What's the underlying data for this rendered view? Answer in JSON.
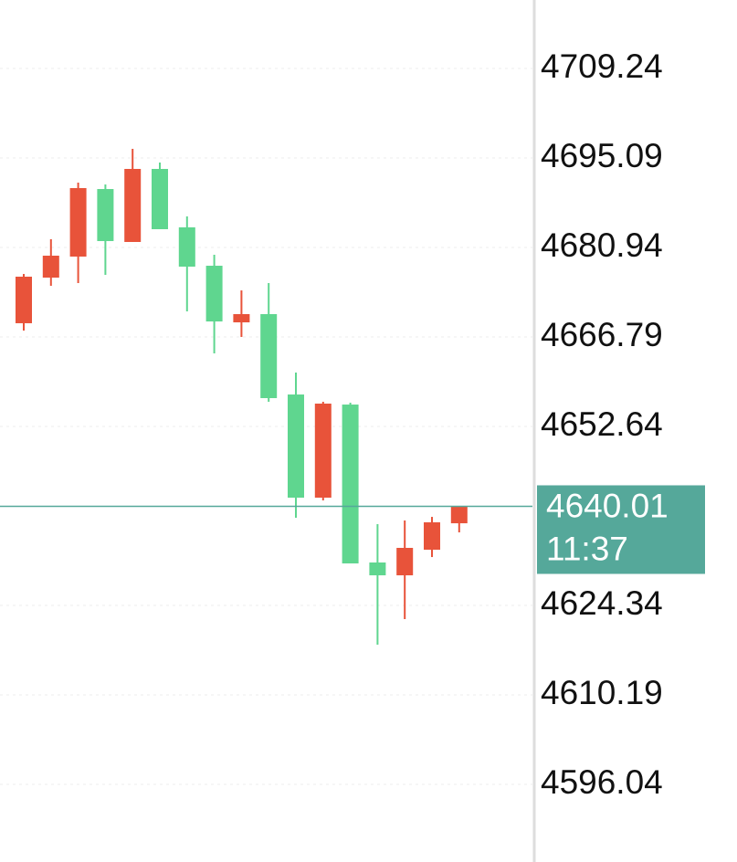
{
  "chart_data": {
    "type": "candlestick",
    "open": [
      4668.96,
      4676.17,
      4679.5,
      4690.18,
      4681.81,
      4693.36,
      4684.12,
      4678.05,
      4669.1,
      4670.4,
      4657.69,
      4641.38,
      4656.1,
      4631.13,
      4629.1,
      4633.15,
      4637.33
    ],
    "high": [
      4676.75,
      4682.24,
      4691.19,
      4690.9,
      4696.53,
      4694.37,
      4685.85,
      4679.78,
      4674.15,
      4675.31,
      4661.16,
      4656.54,
      4656.39,
      4637.19,
      4637.77,
      4638.34,
      4640.08
    ],
    "low": [
      4667.8,
      4674.88,
      4675.31,
      4676.61,
      4681.81,
      4683.83,
      4670.83,
      4664.19,
      4666.79,
      4656.54,
      4638.2,
      4640.94,
      4630.98,
      4618.13,
      4622.17,
      4631.99,
      4635.89
    ],
    "close": [
      4676.32,
      4679.64,
      4690.33,
      4681.95,
      4693.36,
      4683.83,
      4677.91,
      4669.24,
      4670.4,
      4657.12,
      4641.38,
      4656.25,
      4630.98,
      4629.1,
      4633.44,
      4637.48,
      4640.01
    ],
    "up_color": "#e8533a",
    "down_color": "#5fd68f",
    "ylim": [
      4583.77,
      4720.07
    ],
    "yticks": [
      4709.24,
      4695.09,
      4680.94,
      4666.79,
      4652.64,
      4624.34,
      4610.19,
      4596.04
    ],
    "grid": true,
    "last_price": 4640.01,
    "last_time": "11:37",
    "last_color": "#55a89a"
  }
}
